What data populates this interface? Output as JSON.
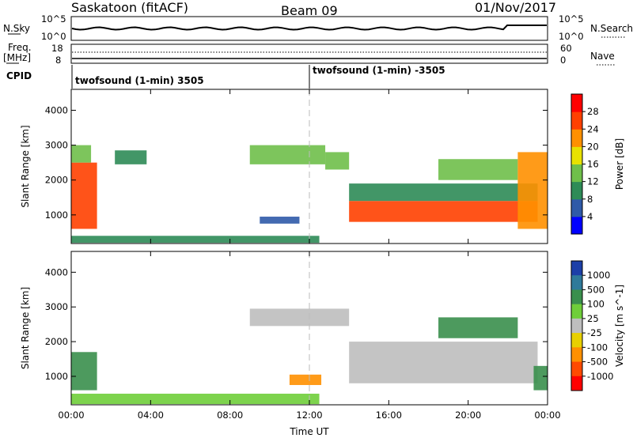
{
  "header": {
    "title": "Saskatoon (fitACF)",
    "beam": "Beam 09",
    "date": "01/Nov/2017"
  },
  "top_panels": {
    "nsky_label": "N.Sky",
    "nsearch_label": "N.Search",
    "nsky_ticks": [
      "10^5",
      "10^0"
    ],
    "nsearch_ticks": [
      "10^5",
      "10^0"
    ],
    "freq_label_1": "Freq.",
    "freq_label_2": "[MHz]",
    "freq_ticks": [
      "18",
      "8"
    ],
    "nave_label": "Nave",
    "nave_ticks": [
      "60",
      "0"
    ],
    "cpid_label": "CPID",
    "cpid_entries": [
      "twofsound (1-min) 3505",
      "twofsound (1-min) -3505"
    ]
  },
  "chart_data": [
    {
      "type": "heatmap",
      "panel": "power",
      "xlabel": "",
      "ylabel": "Slant Range [km]",
      "x_ticks": [
        "00:00",
        "04:00",
        "08:00",
        "12:00",
        "16:00",
        "20:00",
        "00:00"
      ],
      "y_ticks": [
        1000,
        2000,
        3000,
        4000
      ],
      "xlim": [
        0,
        24
      ],
      "ylim": [
        180,
        4600
      ],
      "colorbar": {
        "label": "Power [dB]",
        "ticks": [
          4,
          8,
          12,
          16,
          20,
          24,
          28
        ],
        "colors": [
          "#0000ff",
          "#2f5aa8",
          "#2e8b57",
          "#6fbf4a",
          "#e8e100",
          "#ff9000",
          "#ff4000",
          "#ff0000"
        ]
      },
      "regions": [
        {
          "t0": 0.0,
          "t1": 1.3,
          "r0": 600,
          "r1": 2500,
          "level": 26
        },
        {
          "t0": 0.0,
          "t1": 1.0,
          "r0": 2500,
          "r1": 3000,
          "level": 12
        },
        {
          "t0": 2.2,
          "t1": 3.8,
          "r0": 2450,
          "r1": 2850,
          "level": 8
        },
        {
          "t0": 9.0,
          "t1": 12.8,
          "r0": 2450,
          "r1": 3000,
          "level": 14
        },
        {
          "t0": 12.8,
          "t1": 14.0,
          "r0": 2300,
          "r1": 2800,
          "level": 14
        },
        {
          "t0": 14.0,
          "t1": 23.5,
          "r0": 800,
          "r1": 1400,
          "level": 27
        },
        {
          "t0": 14.0,
          "t1": 23.5,
          "r0": 1400,
          "r1": 1900,
          "level": 10
        },
        {
          "t0": 18.5,
          "t1": 22.5,
          "r0": 2000,
          "r1": 2600,
          "level": 14
        },
        {
          "t0": 22.5,
          "t1": 24.0,
          "r0": 600,
          "r1": 2800,
          "level": 22
        },
        {
          "t0": 9.5,
          "t1": 11.5,
          "r0": 750,
          "r1": 950,
          "level": 6
        },
        {
          "t0": 0.0,
          "t1": 12.5,
          "r0": 200,
          "r1": 400,
          "level": 10
        }
      ]
    },
    {
      "type": "heatmap",
      "panel": "velocity",
      "xlabel": "Time UT",
      "ylabel": "Slant Range [km]",
      "x_ticks": [
        "00:00",
        "04:00",
        "08:00",
        "12:00",
        "16:00",
        "20:00",
        "00:00"
      ],
      "y_ticks": [
        1000,
        2000,
        3000,
        4000
      ],
      "xlim": [
        0,
        24
      ],
      "ylim": [
        180,
        4600
      ],
      "colorbar": {
        "label": "Velocity [m s^-1]",
        "ticks": [
          1000,
          500,
          100,
          25,
          -25,
          -100,
          -500,
          -1000
        ],
        "colors": [
          "#1c3fa8",
          "#2f7a9a",
          "#3a8f4d",
          "#6fce3a",
          "#bebebe",
          "#e8d000",
          "#ff9000",
          "#ff4a00",
          "#ff0000"
        ]
      },
      "regions": [
        {
          "t0": 0.0,
          "t1": 1.3,
          "r0": 600,
          "r1": 1700,
          "level": 300
        },
        {
          "t0": 9.0,
          "t1": 14.0,
          "r0": 2450,
          "r1": 2950,
          "level": 0
        },
        {
          "t0": 14.0,
          "t1": 23.5,
          "r0": 800,
          "r1": 2000,
          "level": 0
        },
        {
          "t0": 18.5,
          "t1": 22.5,
          "r0": 2100,
          "r1": 2700,
          "level": 300
        },
        {
          "t0": 11.0,
          "t1": 12.6,
          "r0": 750,
          "r1": 1050,
          "level": -300
        },
        {
          "t0": 23.3,
          "t1": 24.0,
          "r0": 600,
          "r1": 1300,
          "level": 200
        },
        {
          "t0": 0.0,
          "t1": 12.5,
          "r0": 200,
          "r1": 500,
          "level": 60
        }
      ]
    }
  ]
}
